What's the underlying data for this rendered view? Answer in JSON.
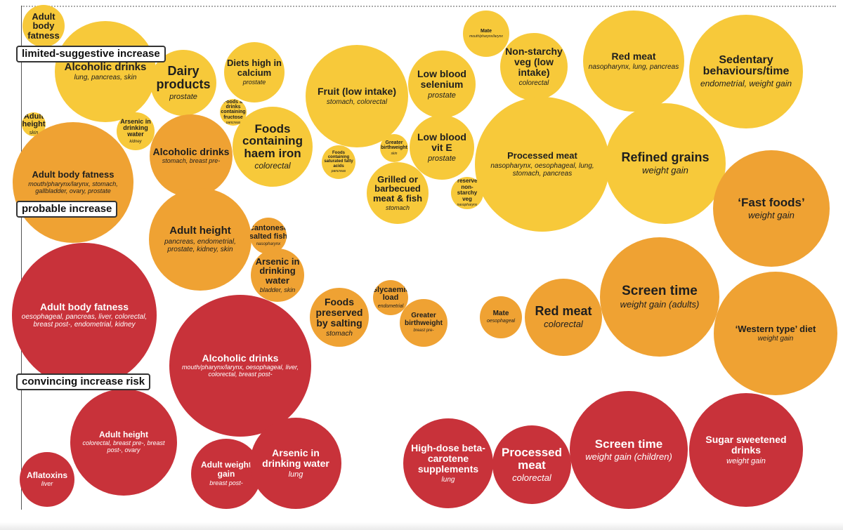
{
  "zones": {
    "limited": "limited-suggestive increase",
    "probable": "probable increase",
    "convincing": "convincing increase risk"
  },
  "colors": {
    "limited-suggestive": "#f7c93a",
    "probable": "#efa233",
    "convincing": "#c8323a"
  },
  "chart_data": {
    "type": "bubble",
    "series": [
      {
        "key": "limited-suggestive",
        "color": "#f7c93a"
      },
      {
        "key": "probable",
        "color": "#efa233"
      },
      {
        "key": "convincing",
        "color": "#c8323a"
      }
    ],
    "bubbles": [
      {
        "name": "Adult body fatness",
        "sites": "",
        "evidence": "limited-suggestive"
      },
      {
        "name": "Alcoholic drinks",
        "sites": "lung, pancreas, skin",
        "evidence": "limited-suggestive"
      },
      {
        "name": "Dairy products",
        "sites": "prostate",
        "evidence": "limited-suggestive"
      },
      {
        "name": "Diets high in calcium",
        "sites": "prostate",
        "evidence": "limited-suggestive"
      },
      {
        "name": "Foods & drinks containing fructose",
        "sites": "pancreas",
        "evidence": "limited-suggestive"
      },
      {
        "name": "Adult height",
        "sites": "skin",
        "evidence": "limited-suggestive"
      },
      {
        "name": "Arsenic in drinking water",
        "sites": "kidney",
        "evidence": "limited-suggestive"
      },
      {
        "name": "Foods containing haem iron",
        "sites": "colorectal",
        "evidence": "limited-suggestive"
      },
      {
        "name": "Fruit (low intake)",
        "sites": "stomach, colorectal",
        "evidence": "limited-suggestive"
      },
      {
        "name": "Foods containing saturated fatty acids",
        "sites": "pancreas",
        "evidence": "limited-suggestive"
      },
      {
        "name": "Greater birthweight",
        "sites": "skin",
        "evidence": "limited-suggestive"
      },
      {
        "name": "Low blood selenium",
        "sites": "prostate",
        "evidence": "limited-suggestive"
      },
      {
        "name": "Low blood vit E",
        "sites": "prostate",
        "evidence": "limited-suggestive"
      },
      {
        "name": "Grilled or barbecued meat & fish",
        "sites": "stomach",
        "evidence": "limited-suggestive"
      },
      {
        "name": "Preserved non-starchy veg",
        "sites": "nasopharynx",
        "evidence": "limited-suggestive"
      },
      {
        "name": "Mate",
        "sites": "mouth/pharynx/larynx",
        "evidence": "limited-suggestive"
      },
      {
        "name": "Non-starchy veg (low intake)",
        "sites": "colorectal",
        "evidence": "limited-suggestive"
      },
      {
        "name": "Processed meat",
        "sites": "nasopharynx, oesophageal, lung, stomach, pancreas",
        "evidence": "limited-suggestive"
      },
      {
        "name": "Red meat",
        "sites": "nasopharynx, lung, pancreas",
        "evidence": "limited-suggestive"
      },
      {
        "name": "Sedentary behaviours/time",
        "sites": "endometrial, weight gain",
        "evidence": "limited-suggestive"
      },
      {
        "name": "Refined grains",
        "sites": "weight gain",
        "evidence": "limited-suggestive"
      },
      {
        "name": "Adult body fatness",
        "sites": "mouth/pharynx/larynx, stomach, gallbladder, ovary, prostate",
        "evidence": "probable"
      },
      {
        "name": "Alcoholic drinks",
        "sites": "stomach, breast pre-",
        "evidence": "probable"
      },
      {
        "name": "Adult height",
        "sites": "pancreas, endometrial, prostate, kidney, skin",
        "evidence": "probable"
      },
      {
        "name": "Cantonese salted fish",
        "sites": "nasopharynx",
        "evidence": "probable"
      },
      {
        "name": "Arsenic in drinking water",
        "sites": "bladder, skin",
        "evidence": "probable"
      },
      {
        "name": "Foods preserved by salting",
        "sites": "stomach",
        "evidence": "probable"
      },
      {
        "name": "Glycaemic load",
        "sites": "endometrial",
        "evidence": "probable"
      },
      {
        "name": "Greater birthweight",
        "sites": "breast pre-",
        "evidence": "probable"
      },
      {
        "name": "Mate",
        "sites": "oesophageal",
        "evidence": "probable"
      },
      {
        "name": "Red meat",
        "sites": "colorectal",
        "evidence": "probable"
      },
      {
        "name": "Screen time",
        "sites": "weight gain (adults)",
        "evidence": "probable"
      },
      {
        "name": "‘Fast foods’",
        "sites": "weight gain",
        "evidence": "probable"
      },
      {
        "name": "‘Western type’ diet",
        "sites": "weight gain",
        "evidence": "probable"
      },
      {
        "name": "Adult body fatness",
        "sites": "oesophageal, pancreas, liver, colorectal, breast post-, endometrial, kidney",
        "evidence": "convincing"
      },
      {
        "name": "Alcoholic drinks",
        "sites": "mouth/pharynx/larynx, oesophageal, liver, colorectal, breast post-",
        "evidence": "convincing"
      },
      {
        "name": "Adult height",
        "sites": "colorectal, breast pre-, breast post-, ovary",
        "evidence": "convincing"
      },
      {
        "name": "Aflatoxins",
        "sites": "liver",
        "evidence": "convincing"
      },
      {
        "name": "Adult weight gain",
        "sites": "breast post-",
        "evidence": "convincing"
      },
      {
        "name": "Arsenic in drinking water",
        "sites": "lung",
        "evidence": "convincing"
      },
      {
        "name": "High-dose beta-carotene supplements",
        "sites": "lung",
        "evidence": "convincing"
      },
      {
        "name": "Processed meat",
        "sites": "colorectal",
        "evidence": "convincing"
      },
      {
        "name": "Screen time",
        "sites": "weight gain (children)",
        "evidence": "convincing"
      },
      {
        "name": "Sugar sweetened drinks",
        "sites": "weight gain",
        "evidence": "convincing"
      }
    ]
  }
}
